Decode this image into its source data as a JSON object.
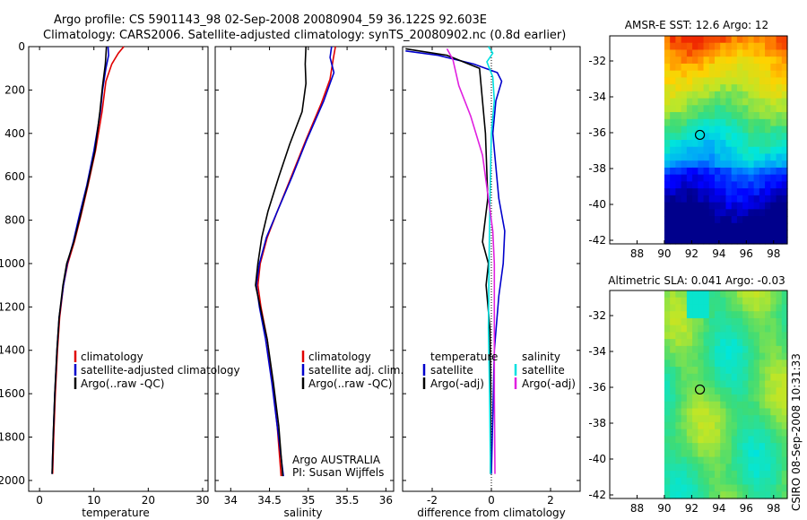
{
  "header": {
    "line1": "Argo profile: CS 5901143_98 02-Sep-2008 20080904_59 36.122S 92.603E",
    "line2": "Climatology: CARS2006. Satellite-adjusted climatology: synTS_20080902.nc (0.8d earlier)"
  },
  "side_label": "CSIRO 08-Sep-2008 10:31:33",
  "colors": {
    "clim": "#e00000",
    "sat": "#0000cc",
    "argo": "#000000",
    "sat_sal": "#00e0e0",
    "argo_sal": "#e020e0"
  },
  "chart_data": [
    {
      "type": "line",
      "id": "temperature",
      "xlabel": "temperature",
      "xlim": [
        -2,
        31
      ],
      "ylim": [
        0,
        2050
      ],
      "xticks": [
        0,
        10,
        20,
        30
      ],
      "yticks": [
        0,
        200,
        400,
        600,
        800,
        1000,
        1200,
        1400,
        1600,
        1800,
        2000
      ],
      "legend": [
        "climatology",
        "satellite-adjusted climatology",
        "Argo(..raw -QC)"
      ],
      "series": [
        {
          "name": "climatology",
          "color": "#e00000",
          "points": [
            [
              15.5,
              0
            ],
            [
              14.5,
              30
            ],
            [
              13.3,
              80
            ],
            [
              12.2,
              160
            ],
            [
              11.5,
              300
            ],
            [
              10.3,
              480
            ],
            [
              8.9,
              640
            ],
            [
              7.6,
              780
            ],
            [
              6.4,
              900
            ],
            [
              5.2,
              1000
            ],
            [
              4.4,
              1100
            ],
            [
              3.7,
              1250
            ],
            [
              3.3,
              1400
            ],
            [
              2.9,
              1600
            ],
            [
              2.6,
              1800
            ],
            [
              2.4,
              1970
            ]
          ]
        },
        {
          "name": "satellite-adjusted climatology",
          "color": "#0000cc",
          "points": [
            [
              12.6,
              0
            ],
            [
              12.7,
              40
            ],
            [
              12.2,
              100
            ],
            [
              11.6,
              200
            ],
            [
              11.2,
              300
            ],
            [
              10.0,
              480
            ],
            [
              8.7,
              640
            ],
            [
              7.3,
              780
            ],
            [
              6.2,
              900
            ],
            [
              5.1,
              1000
            ],
            [
              4.4,
              1100
            ],
            [
              3.6,
              1250
            ],
            [
              3.2,
              1400
            ],
            [
              2.8,
              1600
            ],
            [
              2.5,
              1800
            ],
            [
              2.3,
              1970
            ]
          ]
        },
        {
          "name": "Argo(..raw -QC)",
          "color": "#000000",
          "points": [
            [
              12.3,
              0
            ],
            [
              12.1,
              80
            ],
            [
              11.6,
              180
            ],
            [
              11.1,
              300
            ],
            [
              10.2,
              480
            ],
            [
              8.8,
              640
            ],
            [
              7.5,
              780
            ],
            [
              6.3,
              900
            ],
            [
              5.0,
              1000
            ],
            [
              4.3,
              1100
            ],
            [
              3.6,
              1250
            ],
            [
              3.2,
              1400
            ],
            [
              2.8,
              1600
            ],
            [
              2.5,
              1800
            ],
            [
              2.3,
              1970
            ]
          ]
        }
      ]
    },
    {
      "type": "line",
      "id": "salinity",
      "xlabel": "salinity",
      "xlim": [
        33.8,
        36.1
      ],
      "ylim": [
        0,
        2050
      ],
      "xticks": [
        34,
        34.5,
        35,
        35.5,
        36
      ],
      "yticks": [
        0,
        200,
        400,
        600,
        800,
        1000,
        1200,
        1400,
        1600,
        1800,
        2000
      ],
      "legend": [
        "climatology",
        "satellite adj. clim.",
        "Argo(..raw -QC)"
      ],
      "annotation": [
        "Argo AUSTRALIA",
        "PI: Susan Wijffels"
      ],
      "series": [
        {
          "name": "climatology",
          "color": "#e00000",
          "points": [
            [
              35.35,
              0
            ],
            [
              35.32,
              60
            ],
            [
              35.28,
              150
            ],
            [
              35.17,
              260
            ],
            [
              34.97,
              430
            ],
            [
              34.78,
              600
            ],
            [
              34.6,
              760
            ],
            [
              34.47,
              880
            ],
            [
              34.38,
              1000
            ],
            [
              34.35,
              1100
            ],
            [
              34.39,
              1200
            ],
            [
              34.47,
              1350
            ],
            [
              34.54,
              1550
            ],
            [
              34.6,
              1750
            ],
            [
              34.65,
              1980
            ]
          ]
        },
        {
          "name": "satellite adj. clim.",
          "color": "#0000cc",
          "points": [
            [
              35.3,
              0
            ],
            [
              35.28,
              50
            ],
            [
              35.33,
              120
            ],
            [
              35.2,
              250
            ],
            [
              34.98,
              430
            ],
            [
              34.79,
              600
            ],
            [
              34.6,
              760
            ],
            [
              34.46,
              880
            ],
            [
              34.37,
              1000
            ],
            [
              34.33,
              1100
            ],
            [
              34.37,
              1200
            ],
            [
              34.45,
              1350
            ],
            [
              34.53,
              1550
            ],
            [
              34.6,
              1750
            ],
            [
              34.68,
              1980
            ]
          ]
        },
        {
          "name": "Argo(..raw -QC)",
          "color": "#000000",
          "points": [
            [
              34.97,
              0
            ],
            [
              34.96,
              80
            ],
            [
              34.97,
              170
            ],
            [
              34.92,
              300
            ],
            [
              34.76,
              450
            ],
            [
              34.62,
              600
            ],
            [
              34.48,
              760
            ],
            [
              34.4,
              880
            ],
            [
              34.35,
              1000
            ],
            [
              34.32,
              1100
            ],
            [
              34.38,
              1200
            ],
            [
              34.47,
              1350
            ],
            [
              34.55,
              1550
            ],
            [
              34.62,
              1750
            ],
            [
              34.67,
              1980
            ]
          ]
        }
      ]
    },
    {
      "type": "line",
      "id": "difference",
      "xlabel": "difference from climatology",
      "xlim": [
        -3,
        3
      ],
      "ylim": [
        0,
        2050
      ],
      "xticks": [
        -2,
        0,
        2
      ],
      "yticks": [
        0,
        200,
        400,
        600,
        800,
        1000,
        1200,
        1400,
        1600,
        1800,
        2000
      ],
      "legend_left": {
        "title": "temperature",
        "items": [
          "satellite",
          "Argo(-adj)"
        ]
      },
      "legend_right": {
        "title": "salinity",
        "items": [
          "satellite",
          "Argo(-adj)"
        ]
      },
      "series": [
        {
          "name": "temperature satellite",
          "color": "#0000cc",
          "points": [
            [
              -2.9,
              20
            ],
            [
              -1.8,
              40
            ],
            [
              -0.6,
              80
            ],
            [
              0.2,
              120
            ],
            [
              0.35,
              160
            ],
            [
              0.15,
              250
            ],
            [
              0.05,
              400
            ],
            [
              0.25,
              700
            ],
            [
              0.45,
              850
            ],
            [
              0.4,
              1000
            ],
            [
              0.25,
              1150
            ],
            [
              0.1,
              1400
            ],
            [
              0.05,
              1700
            ],
            [
              0.0,
              1970
            ]
          ]
        },
        {
          "name": "temperature Argo(-adj)",
          "color": "#000000",
          "points": [
            [
              -2.9,
              10
            ],
            [
              -1.5,
              40
            ],
            [
              -0.4,
              100
            ],
            [
              -0.3,
              250
            ],
            [
              -0.2,
              400
            ],
            [
              -0.12,
              700
            ],
            [
              -0.3,
              900
            ],
            [
              -0.1,
              1000
            ],
            [
              -0.18,
              1100
            ],
            [
              -0.05,
              1300
            ],
            [
              -0.02,
              1600
            ],
            [
              -0.03,
              1970
            ]
          ]
        },
        {
          "name": "salinity satellite",
          "color": "#00e0e0",
          "points": [
            [
              -0.1,
              0
            ],
            [
              0.05,
              30
            ],
            [
              -0.15,
              70
            ],
            [
              0.05,
              140
            ],
            [
              0.1,
              250
            ],
            [
              0.0,
              400
            ],
            [
              -0.05,
              700
            ],
            [
              -0.08,
              1000
            ],
            [
              -0.1,
              1300
            ],
            [
              -0.06,
              1600
            ],
            [
              -0.03,
              1970
            ]
          ]
        },
        {
          "name": "salinity Argo(-adj)",
          "color": "#e020e0",
          "points": [
            [
              -1.5,
              10
            ],
            [
              -1.3,
              60
            ],
            [
              -1.1,
              180
            ],
            [
              -0.7,
              320
            ],
            [
              -0.3,
              500
            ],
            [
              -0.1,
              700
            ],
            [
              0.05,
              850
            ],
            [
              0.1,
              1000
            ],
            [
              0.1,
              1300
            ],
            [
              0.1,
              1600
            ],
            [
              0.12,
              1970
            ]
          ]
        }
      ]
    },
    {
      "type": "heatmap",
      "id": "sst_map",
      "title": "AMSR-E SST: 12.6  Argo: 12",
      "xlim": [
        86,
        99
      ],
      "ylim": [
        -42.2,
        -30.6
      ],
      "xticks": [
        88,
        90,
        92,
        94,
        96,
        98
      ],
      "yticks": [
        -32,
        -34,
        -36,
        -38,
        -40,
        -42
      ],
      "data_lon_range": [
        90,
        99
      ],
      "marker": {
        "lon": 92.603,
        "lat": -36.122
      }
    },
    {
      "type": "heatmap",
      "id": "sla_map",
      "title": "Altimetric SLA: 0.041  Argo: -0.03",
      "xlim": [
        86,
        99
      ],
      "ylim": [
        -42.2,
        -30.6
      ],
      "xticks": [
        88,
        90,
        92,
        94,
        96,
        98
      ],
      "yticks": [
        -32,
        -34,
        -36,
        -38,
        -40,
        -42
      ],
      "data_lon_range": [
        90,
        99
      ],
      "marker": {
        "lon": 92.603,
        "lat": -36.122
      }
    }
  ]
}
